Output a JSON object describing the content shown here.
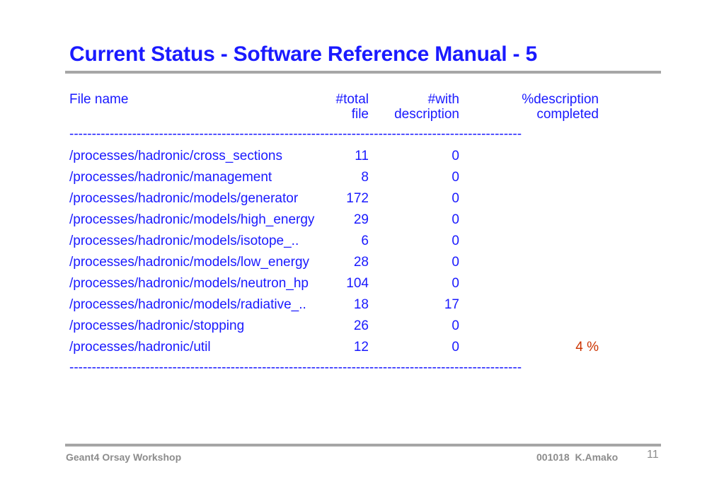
{
  "slide": {
    "title": "Current Status - Software Reference Manual - 5"
  },
  "table": {
    "headers": {
      "name": "File name",
      "total_line1": "#total",
      "total_line2": "file",
      "with_line1": "#with",
      "with_line2": "description",
      "pct_line1": "%description",
      "pct_line2": "completed"
    },
    "separator": "-----------------------------------------------------------------------------------------------------",
    "rows": [
      {
        "name": "/processes/hadronic/cross_sections",
        "total": "11",
        "with": "0",
        "pct": ""
      },
      {
        "name": "/processes/hadronic/management",
        "total": "8",
        "with": "0",
        "pct": ""
      },
      {
        "name": "/processes/hadronic/models/generator",
        "total": "172",
        "with": "0",
        "pct": ""
      },
      {
        "name": "/processes/hadronic/models/high_energy",
        "total": "29",
        "with": "0",
        "pct": ""
      },
      {
        "name": "/processes/hadronic/models/isotope_..",
        "total": "6",
        "with": "0",
        "pct": ""
      },
      {
        "name": "/processes/hadronic/models/low_energy",
        "total": "28",
        "with": "0",
        "pct": ""
      },
      {
        "name": "/processes/hadronic/models/neutron_hp",
        "total": "104",
        "with": "0",
        "pct": ""
      },
      {
        "name": "/processes/hadronic/models/radiative_..",
        "total": "18",
        "with": "17",
        "pct": ""
      },
      {
        "name": "/processes/hadronic/stopping",
        "total": "26",
        "with": "0",
        "pct": ""
      },
      {
        "name": "/processes/hadronic/util",
        "total": "12",
        "with": "0",
        "pct": "4 %"
      }
    ]
  },
  "footer": {
    "left": "Geant4 Orsay Workshop",
    "right": "001018  K.Amako",
    "page": "11"
  },
  "colors": {
    "text_blue": "#1a1aff",
    "pct_red": "#cc3300",
    "rule_gray": "#a6a6a6",
    "footer_gray": "#8c8c8c"
  }
}
